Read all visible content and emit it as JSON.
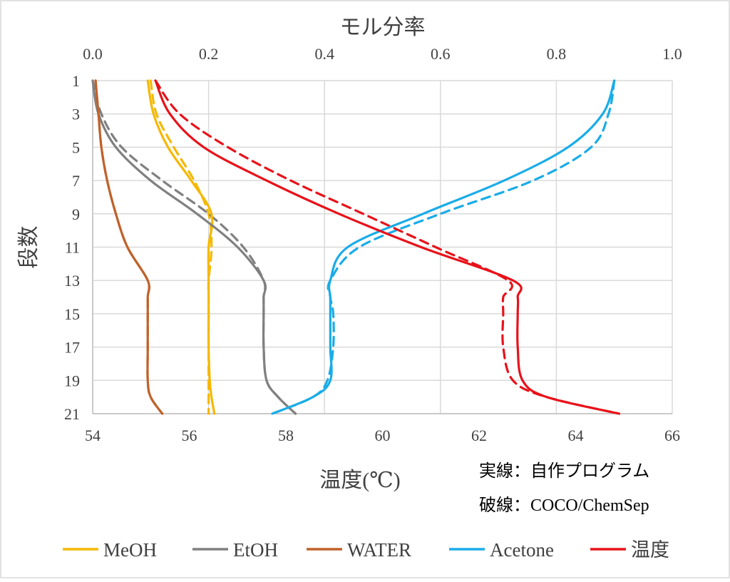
{
  "chart_data": {
    "type": "line",
    "y_axis": {
      "label": "段数",
      "range": [
        1,
        21
      ],
      "reversed": true,
      "ticks": [
        1,
        3,
        5,
        7,
        9,
        11,
        13,
        15,
        17,
        19,
        21
      ],
      "tick_labels": [
        "1",
        "3",
        "5",
        "7",
        "9",
        "11",
        "13",
        "15",
        "17",
        "19",
        "21"
      ]
    },
    "x_axis_top": {
      "label": "モル分率",
      "range": [
        0,
        1
      ],
      "ticks": [
        0,
        0.2,
        0.4,
        0.6,
        0.8,
        1.0
      ],
      "tick_labels": [
        "0.0",
        "0.2",
        "0.4",
        "0.6",
        "0.8",
        "1.0"
      ]
    },
    "x_axis_bottom": {
      "label": "温度(℃)",
      "range": [
        54,
        66
      ],
      "ticks": [
        54,
        56,
        58,
        60,
        62,
        64,
        66
      ],
      "tick_labels": [
        "54",
        "56",
        "58",
        "60",
        "62",
        "64",
        "66"
      ]
    },
    "grid": "vertical",
    "annotations": [
      "実線：自作プログラム",
      "破線：COCO/ChemSep"
    ],
    "stages": [
      1,
      3,
      5,
      7,
      9,
      11,
      13,
      14,
      15,
      17,
      19,
      20,
      21
    ],
    "series": [
      {
        "name": "MeOH",
        "color": "#F5B800",
        "axis": "mole_fraction",
        "style": "solid",
        "values": [
          0.095,
          0.105,
          0.13,
          0.17,
          0.205,
          0.2,
          0.2,
          0.2,
          0.2,
          0.2,
          0.202,
          0.205,
          0.21
        ]
      },
      {
        "name": "MeOH",
        "color": "#F5B800",
        "axis": "mole_fraction",
        "style": "dashed",
        "values": [
          0.1,
          0.11,
          0.14,
          0.175,
          0.2,
          0.205,
          0.2,
          0.2,
          0.2,
          0.2,
          0.2,
          0.2,
          0.2
        ]
      },
      {
        "name": "EtOH",
        "color": "#808080",
        "axis": "mole_fraction",
        "style": "solid",
        "values": [
          0.0,
          0.01,
          0.04,
          0.1,
          0.18,
          0.25,
          0.295,
          0.295,
          0.295,
          0.295,
          0.3,
          0.32,
          0.35
        ]
      },
      {
        "name": "EtOH",
        "color": "#808080",
        "axis": "mole_fraction",
        "style": "dashed",
        "values": [
          0.0,
          0.015,
          0.05,
          0.12,
          0.2,
          0.26,
          0.295,
          0.295,
          0.295,
          0.295,
          0.3,
          0.32,
          0.35
        ]
      },
      {
        "name": "WATER",
        "color": "#C0622A",
        "axis": "mole_fraction",
        "style": "solid",
        "values": [
          0.005,
          0.01,
          0.015,
          0.025,
          0.04,
          0.06,
          0.095,
          0.095,
          0.095,
          0.095,
          0.095,
          0.1,
          0.12
        ]
      },
      {
        "name": "WATER",
        "color": "#C0622A",
        "axis": "mole_fraction",
        "style": "dashed",
        "values": [
          0.005,
          0.01,
          0.015,
          0.025,
          0.04,
          0.06,
          0.095,
          0.095,
          0.095,
          0.095,
          0.095,
          0.1,
          0.12
        ]
      },
      {
        "name": "Acetone",
        "color": "#1AACE8",
        "axis": "mole_fraction",
        "style": "solid",
        "values": [
          0.9,
          0.88,
          0.82,
          0.71,
          0.57,
          0.44,
          0.41,
          0.41,
          0.41,
          0.41,
          0.41,
          0.38,
          0.31
        ]
      },
      {
        "name": "Acetone",
        "color": "#1AACE8",
        "axis": "mole_fraction",
        "style": "dashed",
        "values": [
          0.9,
          0.89,
          0.86,
          0.76,
          0.6,
          0.46,
          0.41,
          0.41,
          0.415,
          0.415,
          0.405,
          0.38,
          0.31
        ]
      },
      {
        "name": "温度",
        "color": "#E8121A",
        "axis": "temperature",
        "style": "solid",
        "values": [
          55.3,
          55.6,
          56.3,
          57.6,
          59.1,
          60.8,
          62.7,
          62.8,
          62.8,
          62.8,
          62.9,
          63.4,
          64.9
        ]
      },
      {
        "name": "温度",
        "color": "#E8121A",
        "axis": "temperature",
        "style": "dashed",
        "values": [
          55.3,
          55.8,
          56.8,
          58.1,
          59.6,
          61.1,
          62.6,
          62.5,
          62.5,
          62.5,
          62.7,
          63.4,
          64.9
        ]
      }
    ],
    "legend": {
      "position": "bottom",
      "items": [
        {
          "label": "MeOH",
          "color": "#F5B800"
        },
        {
          "label": "EtOH",
          "color": "#808080"
        },
        {
          "label": "WATER",
          "color": "#C0622A"
        },
        {
          "label": "Acetone",
          "color": "#1AACE8"
        },
        {
          "label": "温度",
          "color": "#E8121A"
        }
      ]
    }
  }
}
